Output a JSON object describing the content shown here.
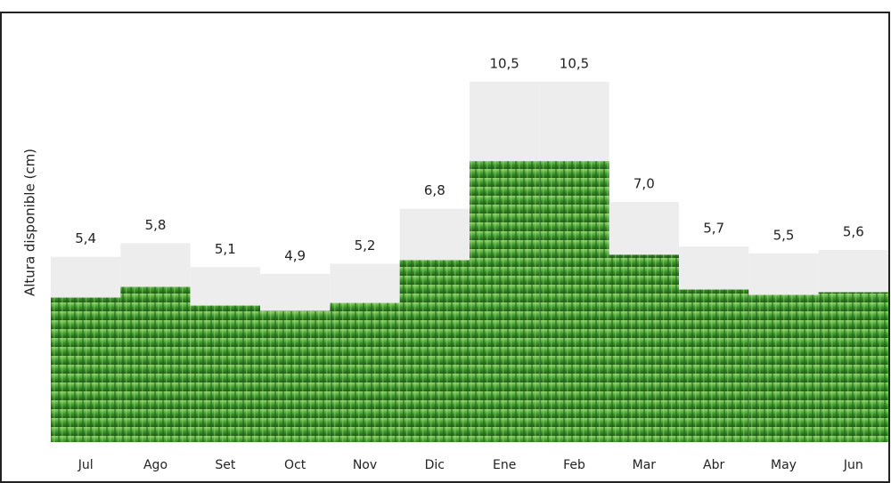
{
  "chart_data": {
    "type": "bar",
    "y_label": "Altura disponible (cm)",
    "categories": [
      "Jul",
      "Ago",
      "Set",
      "Oct",
      "Nov",
      "Dic",
      "Ene",
      "Feb",
      "Mar",
      "Abr",
      "May",
      "Jun"
    ],
    "values": [
      5.4,
      5.8,
      5.1,
      4.9,
      5.2,
      6.8,
      10.5,
      10.5,
      7.0,
      5.7,
      5.5,
      5.6
    ],
    "value_labels": [
      "5,4",
      "5,8",
      "5,1",
      "4,9",
      "5,2",
      "6,8",
      "10,5",
      "10,5",
      "7,0",
      "5,7",
      "5,5",
      "5,6"
    ],
    "color": "#3f9a2e"
  }
}
